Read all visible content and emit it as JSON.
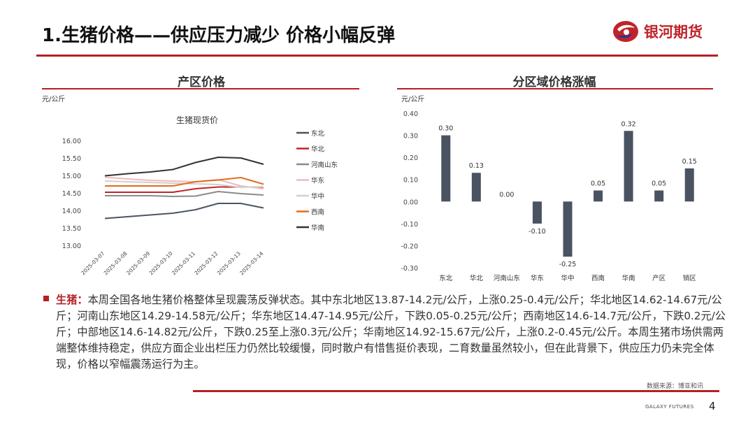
{
  "header": {
    "title": "1.生猪价格——供应压力减少 价格小幅反弹",
    "logo_text": "银河期货",
    "accent_color": "#b32025"
  },
  "left_panel": {
    "title": "产区价格",
    "unit": "元/公斤"
  },
  "right_panel": {
    "title": "分区域价格涨幅",
    "unit": "元/公斤"
  },
  "chart_data": [
    {
      "type": "line",
      "title": "生猪现货价",
      "categories": [
        "2025-03-07",
        "2025-03-08",
        "2025-03-09",
        "2025-03-10",
        "2025-03-11",
        "2025-03-12",
        "2025-03-13",
        "2025-03-14"
      ],
      "ylim": [
        13.0,
        16.0
      ],
      "yticks": [
        "16.00",
        "15.50",
        "15.00",
        "14.50",
        "14.00",
        "13.50",
        "13.00"
      ],
      "legend_position": "right",
      "grid": false,
      "series": [
        {
          "name": "东北",
          "color": "#4b5563",
          "values": [
            13.77,
            13.82,
            13.87,
            13.92,
            14.02,
            14.2,
            14.2,
            14.07
          ]
        },
        {
          "name": "华北",
          "color": "#c0242b",
          "values": [
            14.52,
            14.52,
            14.52,
            14.52,
            14.62,
            14.67,
            14.67,
            14.67
          ]
        },
        {
          "name": "河南山东",
          "color": "#8a8a8a",
          "values": [
            14.42,
            14.42,
            14.42,
            14.4,
            14.41,
            14.54,
            14.48,
            14.44
          ]
        },
        {
          "name": "华东",
          "color": "#f1b9b9",
          "values": [
            14.95,
            14.9,
            14.86,
            14.84,
            14.82,
            14.88,
            14.7,
            14.62
          ]
        },
        {
          "name": "华中",
          "color": "#d0d0d0",
          "values": [
            14.84,
            14.82,
            14.8,
            14.78,
            14.76,
            14.74,
            14.66,
            14.68
          ]
        },
        {
          "name": "西南",
          "color": "#e36c1a",
          "values": [
            14.7,
            14.7,
            14.7,
            14.7,
            14.82,
            14.87,
            14.94,
            14.75
          ]
        },
        {
          "name": "华南",
          "color": "#333333",
          "values": [
            14.99,
            15.05,
            15.1,
            15.17,
            15.37,
            15.52,
            15.5,
            15.32
          ]
        }
      ]
    },
    {
      "type": "bar",
      "title": "",
      "categories": [
        "东北",
        "华北",
        "河南山东",
        "华东",
        "华中",
        "西南",
        "华南",
        "产区",
        "销区"
      ],
      "values": [
        0.3,
        0.13,
        0.0,
        -0.1,
        -0.25,
        0.05,
        0.32,
        0.05,
        0.15
      ],
      "value_labels": [
        "0.30",
        "0.13",
        "0.00",
        "-0.10",
        "-0.25",
        "0.05",
        "0.32",
        "0.05",
        "0.15"
      ],
      "ylim": [
        -0.3,
        0.4
      ],
      "yticks": [
        "0.40",
        "0.30",
        "0.20",
        "0.10",
        "0.00",
        "-0.10",
        "-0.20",
        "-0.30"
      ],
      "bar_color": "#4a5361",
      "grid": false
    }
  ],
  "body": {
    "lead": "生猪：",
    "text": "本周全国各地生猪价格整体呈现震荡反弹状态。其中东北地区13.87-14.2元/公斤，上涨0.25-0.4元/公斤；华北地区14.62-14.67元/公斤；河南山东地区14.29-14.58元/公斤；华东地区14.47-14.95元/公斤，下跌0.05-0.25元/公斤；西南地区14.6-14.7元/公斤，下跌0.2元/公斤；中部地区14.6-14.82元/公斤，下跌0.25至上涨0.3元/公斤；华南地区14.92-15.67元/公斤，上涨0.2-0.45元/公斤。本周生猪市场供需两端整体维持稳定，供应方面企业出栏压力仍然比较缓慢，同时散户有惜售挺价表现，二育数量虽然较小，但在此背景下，供应压力仍未完全体现，价格以窄幅震荡运行为主。"
  },
  "footer": {
    "source": "数据来源：博亚和讯",
    "brand": "GALAXY FUTURES",
    "page": "4"
  }
}
